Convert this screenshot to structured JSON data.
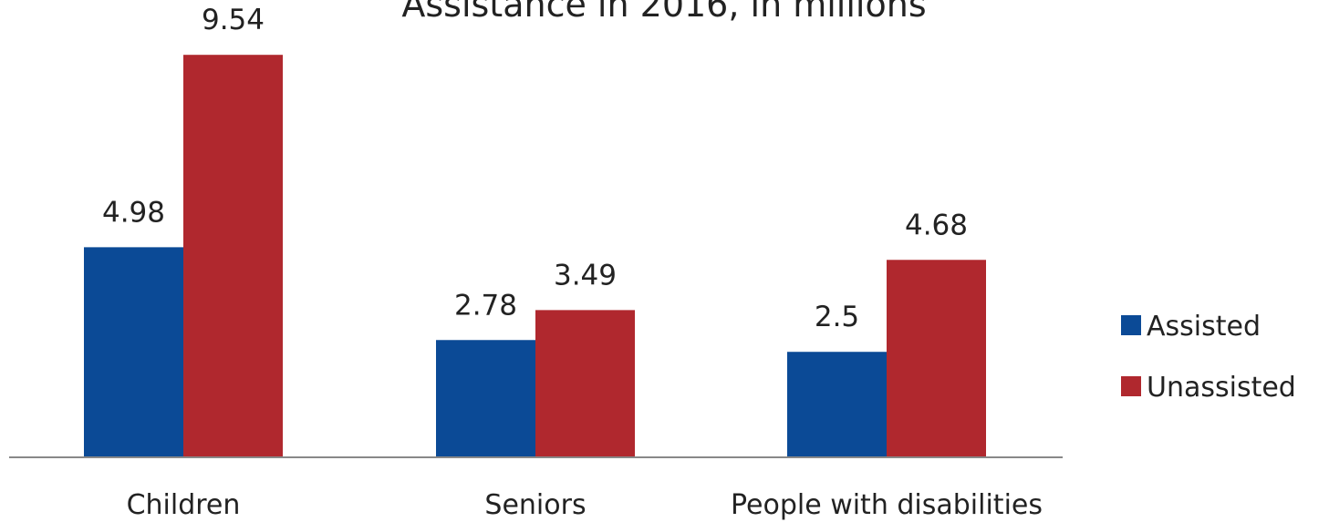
{
  "chart_data": {
    "type": "bar",
    "title": "Assistance in 2016, in millions",
    "categories": [
      "Children",
      "Seniors",
      "People with disabilities"
    ],
    "series": [
      {
        "name": "Assisted",
        "color": "#0b4a96",
        "values": [
          4.98,
          2.78,
          2.5
        ]
      },
      {
        "name": "Unassisted",
        "color": "#b0282e",
        "values": [
          9.54,
          3.49,
          4.68
        ]
      }
    ],
    "data_labels": [
      [
        "4.98",
        "2.78",
        "2.5"
      ],
      [
        "9.54",
        "3.49",
        "4.68"
      ]
    ],
    "xlabel": "",
    "ylabel": "",
    "ylim": [
      0,
      10.3
    ],
    "legend": "right",
    "grid": false
  }
}
